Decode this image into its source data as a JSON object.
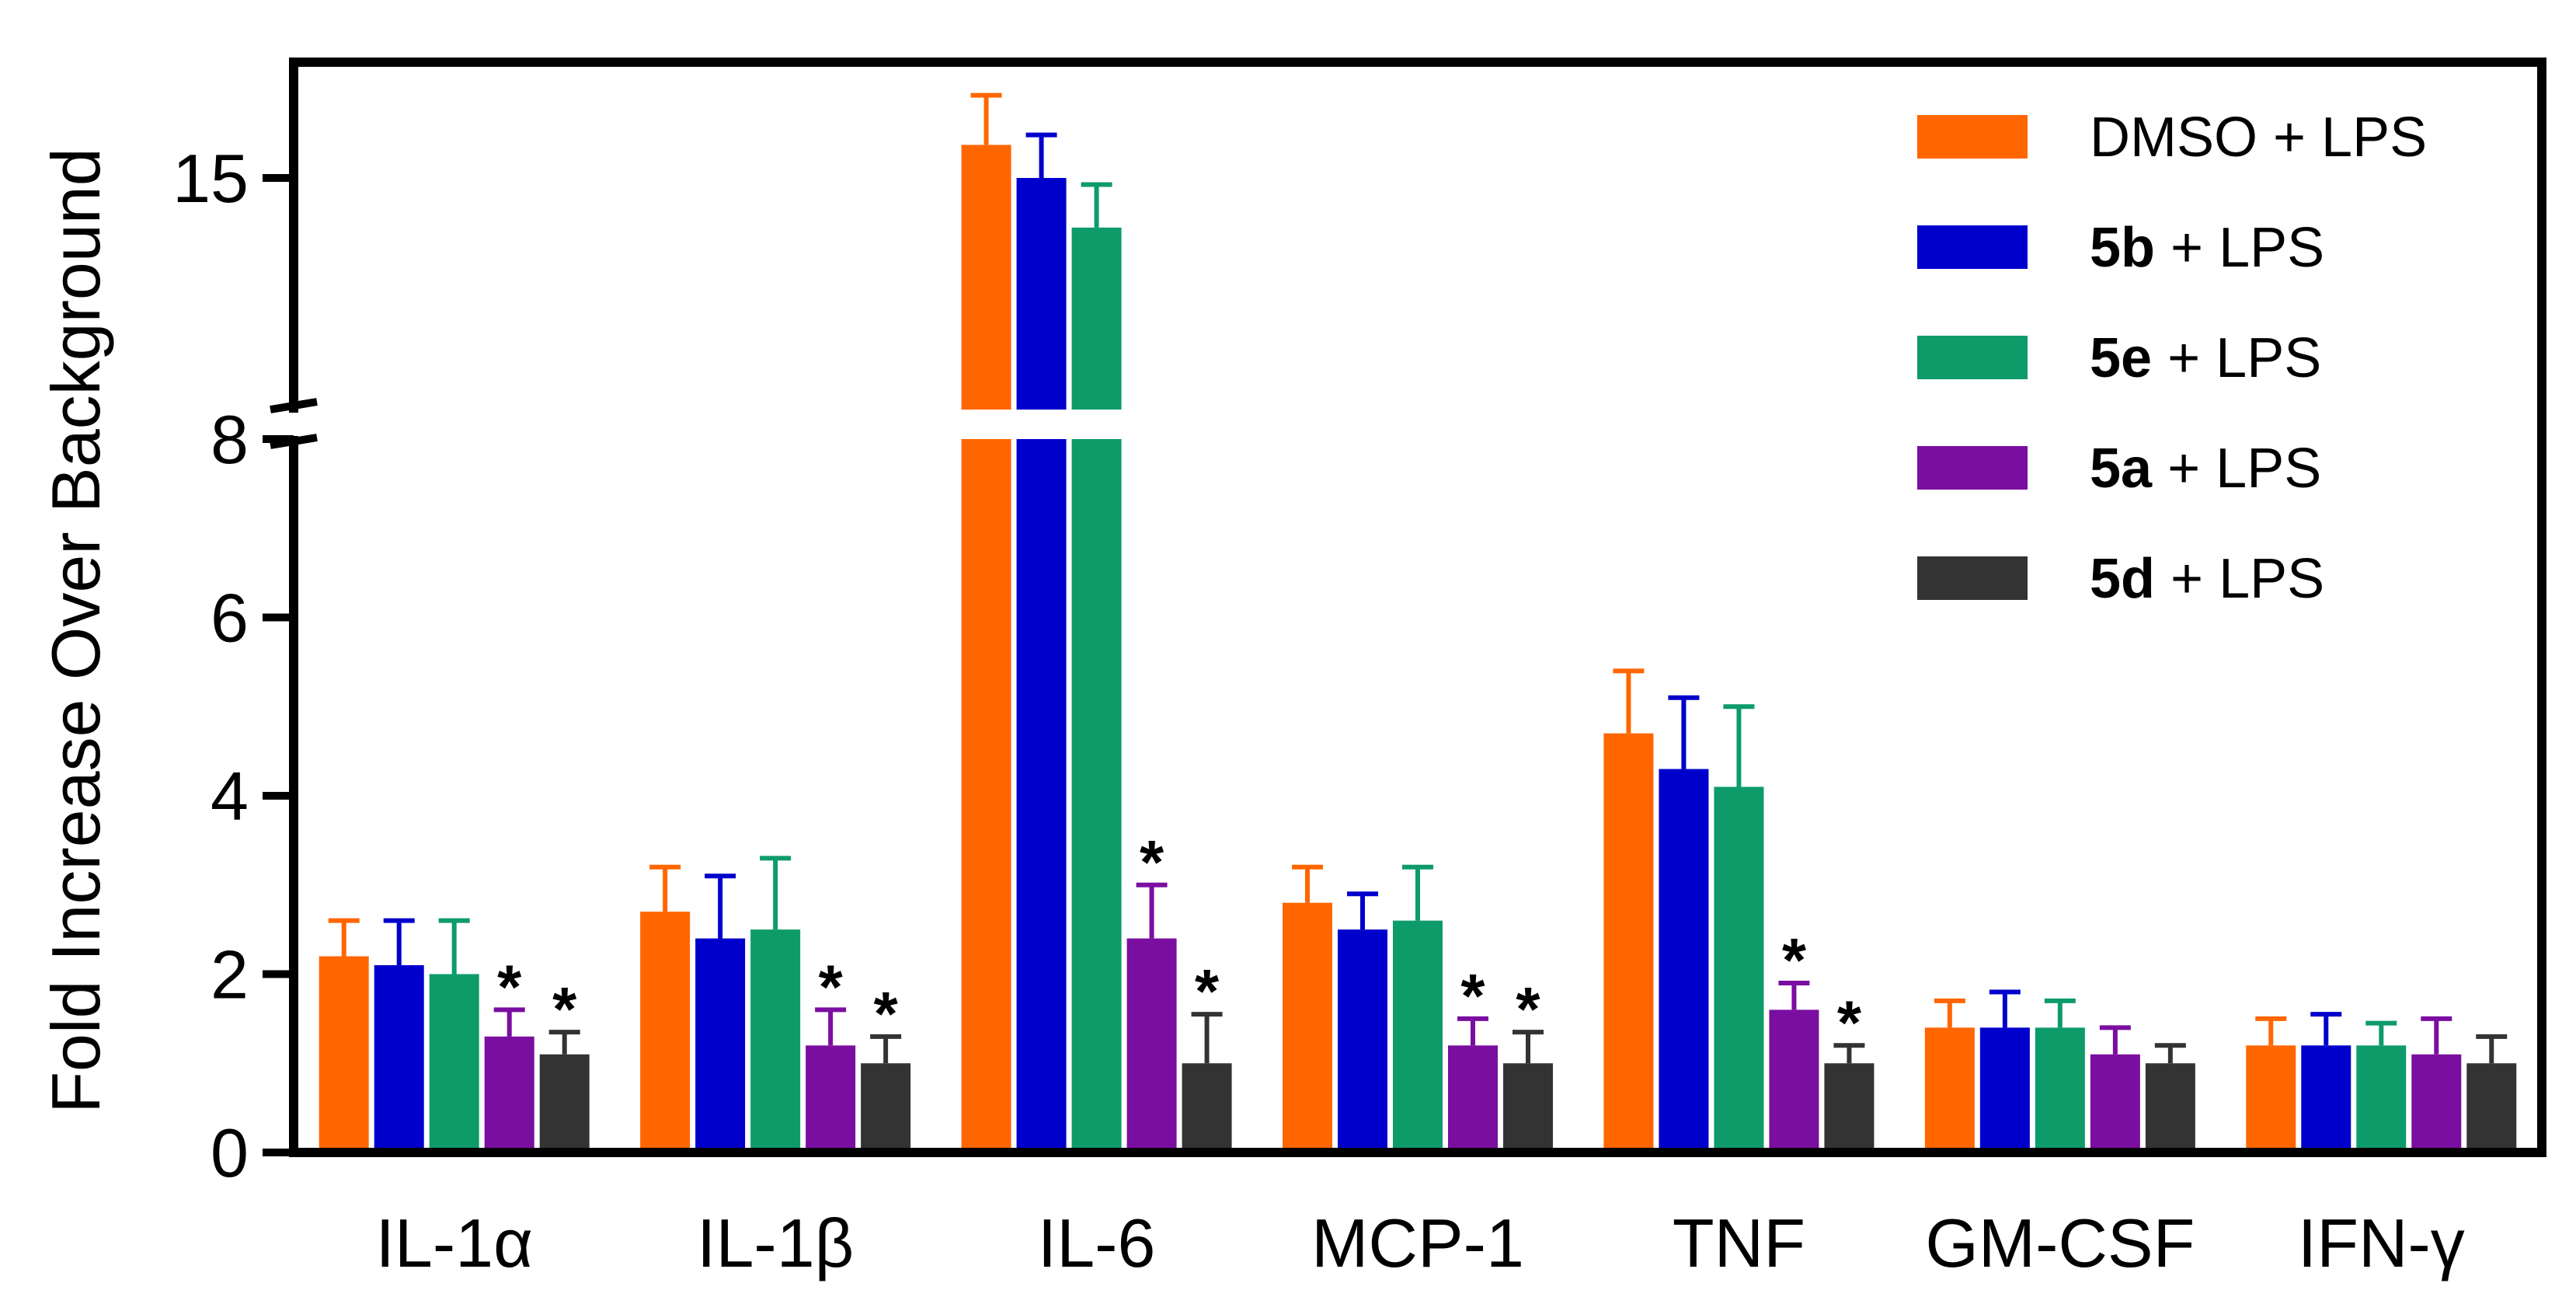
{
  "chart_data": {
    "type": "bar",
    "title": "",
    "xlabel": "",
    "ylabel": "Fold Increase Over Background",
    "ylim": [
      0,
      18.5
    ],
    "axis_break": {
      "lower_segment": [
        0,
        8
      ],
      "upper_segment": [
        8,
        18.5
      ],
      "display_break_between": "8 and 15"
    },
    "yticks": [
      {
        "value": 0,
        "label": "0"
      },
      {
        "value": 2,
        "label": "2"
      },
      {
        "value": 4,
        "label": "4"
      },
      {
        "value": 6,
        "label": "6"
      },
      {
        "value": 8,
        "label": "8"
      },
      {
        "value": 15,
        "label": "15"
      }
    ],
    "categories": [
      "IL-1α",
      "IL-1β",
      "IL-6",
      "MCP-1",
      "TNF",
      "GM-CSF",
      "IFN-γ"
    ],
    "series": [
      {
        "name": "DMSO + LPS",
        "bold": "",
        "rest": "DMSO + LPS",
        "color": "#FF6600",
        "values": [
          2.2,
          2.7,
          16.0,
          2.8,
          4.7,
          1.4,
          1.2
        ],
        "errors": [
          0.4,
          0.5,
          1.5,
          0.4,
          0.7,
          0.3,
          0.3
        ],
        "significant": [
          false,
          false,
          false,
          false,
          false,
          false,
          false
        ]
      },
      {
        "name": "5b + LPS",
        "bold": "5b",
        "rest": " + LPS",
        "color": "#0000CC",
        "values": [
          2.1,
          2.4,
          15.0,
          2.5,
          4.3,
          1.4,
          1.2
        ],
        "errors": [
          0.5,
          0.7,
          1.3,
          0.4,
          0.8,
          0.4,
          0.35
        ],
        "significant": [
          false,
          false,
          false,
          false,
          false,
          false,
          false
        ]
      },
      {
        "name": "5e + LPS",
        "bold": "5e",
        "rest": " + LPS",
        "color": "#0E9B6A",
        "values": [
          2.0,
          2.5,
          13.5,
          2.6,
          4.1,
          1.4,
          1.2
        ],
        "errors": [
          0.6,
          0.8,
          1.3,
          0.6,
          0.9,
          0.3,
          0.25
        ],
        "significant": [
          false,
          false,
          false,
          false,
          false,
          false,
          false
        ]
      },
      {
        "name": "5a + LPS",
        "bold": "5a",
        "rest": " + LPS",
        "color": "#7A0EA0",
        "values": [
          1.3,
          1.2,
          2.4,
          1.2,
          1.6,
          1.1,
          1.1
        ],
        "errors": [
          0.3,
          0.4,
          0.6,
          0.3,
          0.3,
          0.3,
          0.4
        ],
        "significant": [
          true,
          true,
          true,
          true,
          true,
          false,
          false
        ]
      },
      {
        "name": "5d + LPS",
        "bold": "5d",
        "rest": " + LPS",
        "color": "#333333",
        "values": [
          1.1,
          1.0,
          1.0,
          1.0,
          1.0,
          1.0,
          1.0
        ],
        "errors": [
          0.25,
          0.3,
          0.55,
          0.35,
          0.2,
          0.2,
          0.3
        ],
        "significant": [
          true,
          true,
          true,
          true,
          true,
          false,
          false
        ]
      }
    ],
    "significance_marker": "*",
    "legend_position": "top-right",
    "grid": false
  }
}
